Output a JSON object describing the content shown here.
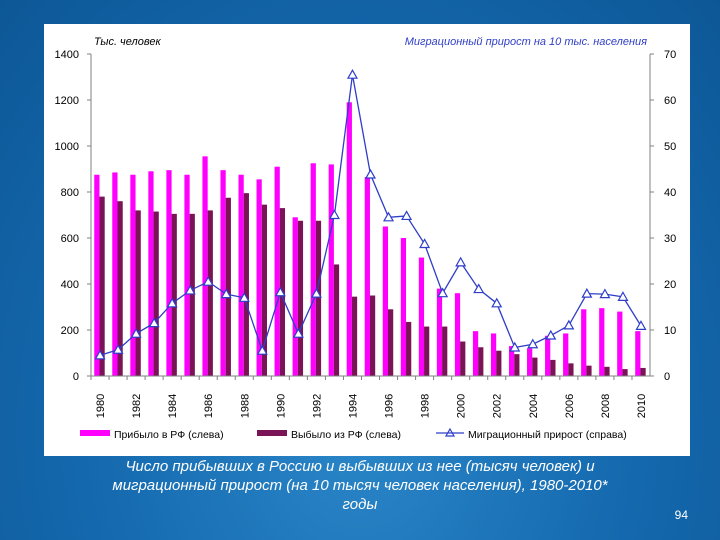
{
  "caption": {
    "line1": "Число прибывших в Россию и выбывших из нее (тысяч человек) и",
    "line2": "миграционный прирост (на 10 тысяч человек населения), 1980-2010*",
    "line3": "годы"
  },
  "slide_number": "94",
  "colors": {
    "arrivals": "#ff00ff",
    "departures": "#7a1457",
    "migration": "#2f3ec8",
    "title_blue": "#2f3ec8",
    "axis": "#808080"
  },
  "chart_data": {
    "type": "bar",
    "left_axis_title": "Тыс. человек",
    "right_axis_title": "Миграционный прирост на 10 тыс. населения",
    "ylim_left": [
      0,
      1400
    ],
    "ylim_right": [
      0,
      70
    ],
    "left_ticks": [
      "0",
      "200",
      "400",
      "600",
      "800",
      "1000",
      "1200",
      "1400"
    ],
    "right_ticks": [
      "0",
      "10",
      "20",
      "30",
      "40",
      "50",
      "60",
      "70"
    ],
    "categories": [
      "1980",
      "1981",
      "1982",
      "1983",
      "1984",
      "1985",
      "1986",
      "1987",
      "1988",
      "1989",
      "1990",
      "1991",
      "1992",
      "1993",
      "1994",
      "1995",
      "1996",
      "1997",
      "1998",
      "1999",
      "2000",
      "2001",
      "2002",
      "2003",
      "2004",
      "2005",
      "2006",
      "2007",
      "2008",
      "2009",
      "2010"
    ],
    "x_tick_labels": [
      "1980",
      "1982",
      "1984",
      "1986",
      "1988",
      "1990",
      "1992",
      "1994",
      "1996",
      "1998",
      "2000",
      "2002",
      "2004",
      "2006",
      "2008",
      "2010"
    ],
    "series": [
      {
        "name": "Прибыло в РФ (слева)",
        "axis": "left",
        "kind": "bar",
        "values": [
          875,
          885,
          875,
          890,
          895,
          875,
          955,
          895,
          875,
          855,
          910,
          690,
          925,
          920,
          1190,
          865,
          650,
          600,
          515,
          380,
          360,
          195,
          185,
          130,
          120,
          175,
          185,
          290,
          295,
          280,
          195
        ]
      },
      {
        "name": "Выбыло из РФ (слева)",
        "axis": "left",
        "kind": "bar",
        "values": [
          780,
          760,
          720,
          715,
          705,
          705,
          720,
          775,
          795,
          745,
          730,
          675,
          675,
          485,
          345,
          350,
          290,
          235,
          215,
          215,
          150,
          125,
          110,
          95,
          80,
          70,
          55,
          45,
          40,
          30,
          35
        ]
      },
      {
        "name": "Миграционный прирост (справа)",
        "axis": "right",
        "kind": "line",
        "values": [
          4.5,
          5.7,
          9.2,
          11.5,
          15.8,
          18.6,
          20.5,
          17.8,
          17.0,
          5.5,
          18.2,
          9.2,
          17.9,
          35.0,
          65.5,
          43.8,
          34.5,
          34.8,
          28.7,
          18.0,
          24.7,
          18.9,
          15.8,
          6.2,
          6.9,
          8.8,
          11.0,
          17.9,
          17.8,
          17.2,
          10.9
        ]
      }
    ]
  }
}
